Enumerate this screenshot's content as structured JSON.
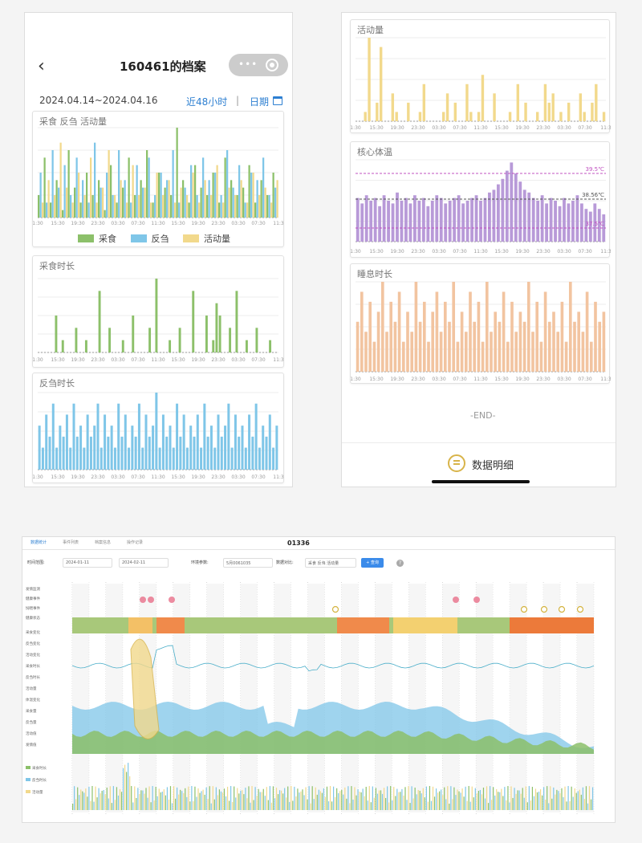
{
  "phone_left": {
    "title": "160461的档案",
    "date_range": "2024.04.14~2024.04.16",
    "recent_label": "近48小时",
    "separator": "|",
    "calendar_label": "日期",
    "chart1_title": "采食 反刍 活动量",
    "chart2_title": "采食时长",
    "chart3_title": "反刍时长",
    "legend": [
      {
        "label": "采食",
        "color": "#8cc06a"
      },
      {
        "label": "反刍",
        "color": "#7fc6e8"
      },
      {
        "label": "活动量",
        "color": "#f2d98c"
      }
    ]
  },
  "phone_right": {
    "chart1_title": "活动量",
    "chart2_title": "核心体温",
    "chart3_title": "睡息时长",
    "temp_lines": [
      "39.5℃",
      "38.56℃",
      "37.5℃"
    ],
    "end_text": "-END-",
    "detail_label": "数据明细"
  },
  "desktop": {
    "cow_id": "01336",
    "tabs": [
      "数据统计",
      "事件列表",
      "档案信息",
      "操作记录"
    ],
    "time_range_label": "时间范围:",
    "start_date": "2024-01-11",
    "end_date": "2024-02-11",
    "env_param_label": "环境参数:",
    "env_param_value": "5月0061035",
    "overlay_label": "数据对比:",
    "overlay_value": "采食 反刍 活动量",
    "query_label": "+ 查询",
    "help": "?",
    "row_labels": [
      "发情监测",
      "健康事件",
      "饲喂事件",
      "健康状态",
      "采食变化",
      "反刍变化",
      "活动变化",
      "采食时长",
      "反刍时长",
      "活动量",
      "体温变化",
      "采食量",
      "反刍量",
      "活动值",
      "发情值"
    ],
    "bottom_legend": [
      "采食时长",
      "反刍时长",
      "活动量"
    ]
  },
  "colors": {
    "green": "#8cc06a",
    "blue": "#7fc6e8",
    "yellow": "#f2d98c",
    "purple": "#b89ad8",
    "orange": "#f2c4a0",
    "accent": "#2d7fd1"
  },
  "chart_data": [
    {
      "type": "bar",
      "title": "采食 反刍 活动量",
      "x_ticks": [
        "1:30",
        "15:30",
        "19:30",
        "23:30",
        "03:30",
        "07:30",
        "11:30",
        "15:30",
        "19:30",
        "23:30",
        "03:30",
        "07:30",
        "11:3"
      ],
      "series": [
        {
          "name": "采食",
          "values": [
            3,
            8,
            2,
            5,
            1,
            9,
            4,
            2,
            6,
            3,
            5,
            1,
            7,
            2,
            4,
            8,
            3,
            5,
            9,
            2,
            6,
            4,
            3,
            12,
            5,
            2,
            7,
            4,
            3,
            6,
            2,
            8,
            5,
            3,
            4,
            7,
            2,
            5,
            3,
            6
          ]
        },
        {
          "name": "反刍",
          "values": [
            6,
            2,
            9,
            4,
            7,
            3,
            8,
            5,
            2,
            10,
            4,
            6,
            3,
            9,
            5,
            2,
            7,
            4,
            8,
            3,
            6,
            5,
            9,
            2,
            4,
            7,
            3,
            8,
            5,
            6,
            3,
            9,
            4,
            7,
            2,
            6,
            5,
            8,
            3,
            4
          ]
        },
        {
          "name": "活动量",
          "values": [
            2,
            5,
            3,
            10,
            4,
            2,
            6,
            3,
            8,
            2,
            4,
            9,
            3,
            5,
            2,
            7,
            3,
            4,
            2,
            6,
            3,
            5,
            2,
            4,
            3,
            6,
            2,
            5,
            3,
            7,
            2,
            4,
            3,
            5,
            2,
            6,
            3,
            4,
            2,
            5
          ]
        }
      ]
    },
    {
      "type": "bar",
      "title": "采食时长",
      "x_ticks": [
        "1:30",
        "15:30",
        "19:30",
        "23:30",
        "03:30",
        "07:30",
        "11:30",
        "15:30",
        "19:30",
        "23:30",
        "03:30",
        "07:30",
        "11:3"
      ],
      "values": [
        0,
        0,
        0,
        0,
        0,
        3,
        0,
        1,
        0,
        0,
        0,
        2,
        0,
        0,
        1,
        0,
        0,
        0,
        5,
        0,
        0,
        2,
        0,
        0,
        0,
        1,
        0,
        0,
        3,
        0,
        0,
        0,
        0,
        2,
        0,
        6,
        0,
        0,
        0,
        1,
        0,
        0,
        2,
        0,
        0,
        0,
        5,
        0,
        0,
        0,
        3,
        0,
        1,
        4,
        3,
        0,
        0,
        2,
        0,
        5,
        0,
        0,
        1,
        0,
        0,
        2,
        0,
        0,
        0,
        1,
        0,
        0
      ]
    },
    {
      "type": "bar",
      "title": "反刍时长",
      "x_ticks": [
        "1:30",
        "15:30",
        "19:30",
        "23:30",
        "03:30",
        "07:30",
        "11:30",
        "15:30",
        "19:30",
        "23:30",
        "03:30",
        "07:30",
        "11:3"
      ],
      "values": [
        4,
        2,
        5,
        3,
        6,
        2,
        4,
        3,
        5,
        2,
        6,
        3,
        4,
        2,
        5,
        3,
        4,
        6,
        2,
        5,
        3,
        4,
        2,
        6,
        3,
        5,
        2,
        4,
        3,
        6,
        2,
        5,
        3,
        4,
        7,
        2,
        5,
        3,
        4,
        2,
        6,
        3,
        5,
        2,
        4,
        3,
        5,
        2,
        6,
        3,
        4,
        2,
        5,
        3,
        4,
        6,
        2,
        5,
        3,
        4,
        2,
        5,
        3,
        6,
        2,
        4,
        3,
        5,
        2,
        4
      ]
    },
    {
      "type": "bar",
      "title": "活动量",
      "x_ticks": [
        "1:30",
        "15:30",
        "19:30",
        "23:30",
        "03:30",
        "07:30",
        "11:30",
        "15:30",
        "19:30",
        "23:30",
        "03:30",
        "07:30",
        "11:3"
      ],
      "values": [
        0,
        0,
        1,
        9,
        0,
        2,
        8,
        0,
        0,
        3,
        1,
        0,
        0,
        2,
        0,
        0,
        1,
        4,
        0,
        0,
        0,
        0,
        1,
        3,
        0,
        2,
        0,
        0,
        4,
        1,
        0,
        1,
        5,
        0,
        0,
        3,
        0,
        0,
        0,
        1,
        0,
        4,
        0,
        2,
        0,
        0,
        1,
        0,
        4,
        2,
        3,
        0,
        1,
        0,
        2,
        0,
        0,
        3,
        1,
        0,
        2,
        4,
        0,
        1
      ]
    },
    {
      "type": "bar",
      "title": "核心体温",
      "x_ticks": [
        "1:30",
        "15:30",
        "19:30",
        "23:30",
        "03:30",
        "07:30",
        "11:30",
        "15:30",
        "19:30",
        "23:30",
        "03:30",
        "07:30",
        "11:3"
      ],
      "reference_lines": [
        39.5,
        38.56,
        37.5
      ],
      "values": [
        38.6,
        38.4,
        38.7,
        38.5,
        38.6,
        38.3,
        38.7,
        38.5,
        38.4,
        38.8,
        38.5,
        38.6,
        38.4,
        38.7,
        38.5,
        38.6,
        38.3,
        38.5,
        38.7,
        38.6,
        38.4,
        38.5,
        38.6,
        38.7,
        38.4,
        38.5,
        38.6,
        38.7,
        38.5,
        38.6,
        38.8,
        38.9,
        39.1,
        39.3,
        39.6,
        39.9,
        39.5,
        39.2,
        38.9,
        38.8,
        38.6,
        38.5,
        38.7,
        38.4,
        38.6,
        38.5,
        38.3,
        38.6,
        38.4,
        38.5,
        38.7,
        38.4,
        38.2,
        38.1,
        38.4,
        38.2,
        38.0
      ]
    },
    {
      "type": "bar",
      "title": "睡息时长",
      "x_ticks": [
        "1:30",
        "15:30",
        "19:30",
        "23:30",
        "03:30",
        "07:30",
        "11:30",
        "15:30",
        "19:30",
        "23:30",
        "03:30",
        "07:30",
        "11:3"
      ],
      "values": [
        5,
        8,
        4,
        7,
        3,
        6,
        9,
        4,
        7,
        5,
        8,
        3,
        6,
        4,
        9,
        5,
        7,
        3,
        6,
        8,
        4,
        7,
        5,
        9,
        3,
        6,
        4,
        8,
        5,
        7,
        3,
        9,
        4,
        6,
        5,
        8,
        3,
        7,
        4,
        6,
        5,
        9,
        4,
        7,
        3,
        8,
        5,
        6,
        4,
        7,
        3,
        9,
        5,
        6,
        4,
        8,
        3,
        7,
        5,
        6
      ]
    }
  ]
}
